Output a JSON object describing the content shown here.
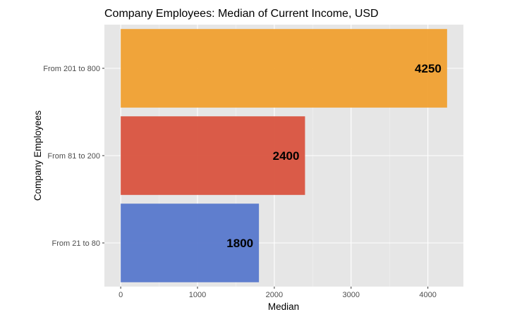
{
  "chart_data": {
    "type": "bar",
    "orientation": "horizontal",
    "title": "Company Employees: Median of Current Income, USD",
    "xlabel": "Median",
    "ylabel": "Company Employees",
    "categories": [
      "From 21 to 80",
      "From 81 to 200",
      "From 201 to 800"
    ],
    "values": [
      1800,
      2400,
      4250
    ],
    "data_labels": [
      "1800",
      "2400",
      "4250"
    ],
    "colors": [
      "#5778cc",
      "#d9533f",
      "#f0a030"
    ],
    "xticks": [
      0,
      1000,
      2000,
      3000,
      4000
    ],
    "xtick_labels": [
      "0",
      "1000",
      "2000",
      "3000",
      "4000"
    ],
    "xlim": [
      -212.5,
      4462.5
    ],
    "grid": true,
    "panel_background": "#e6e6e6"
  }
}
